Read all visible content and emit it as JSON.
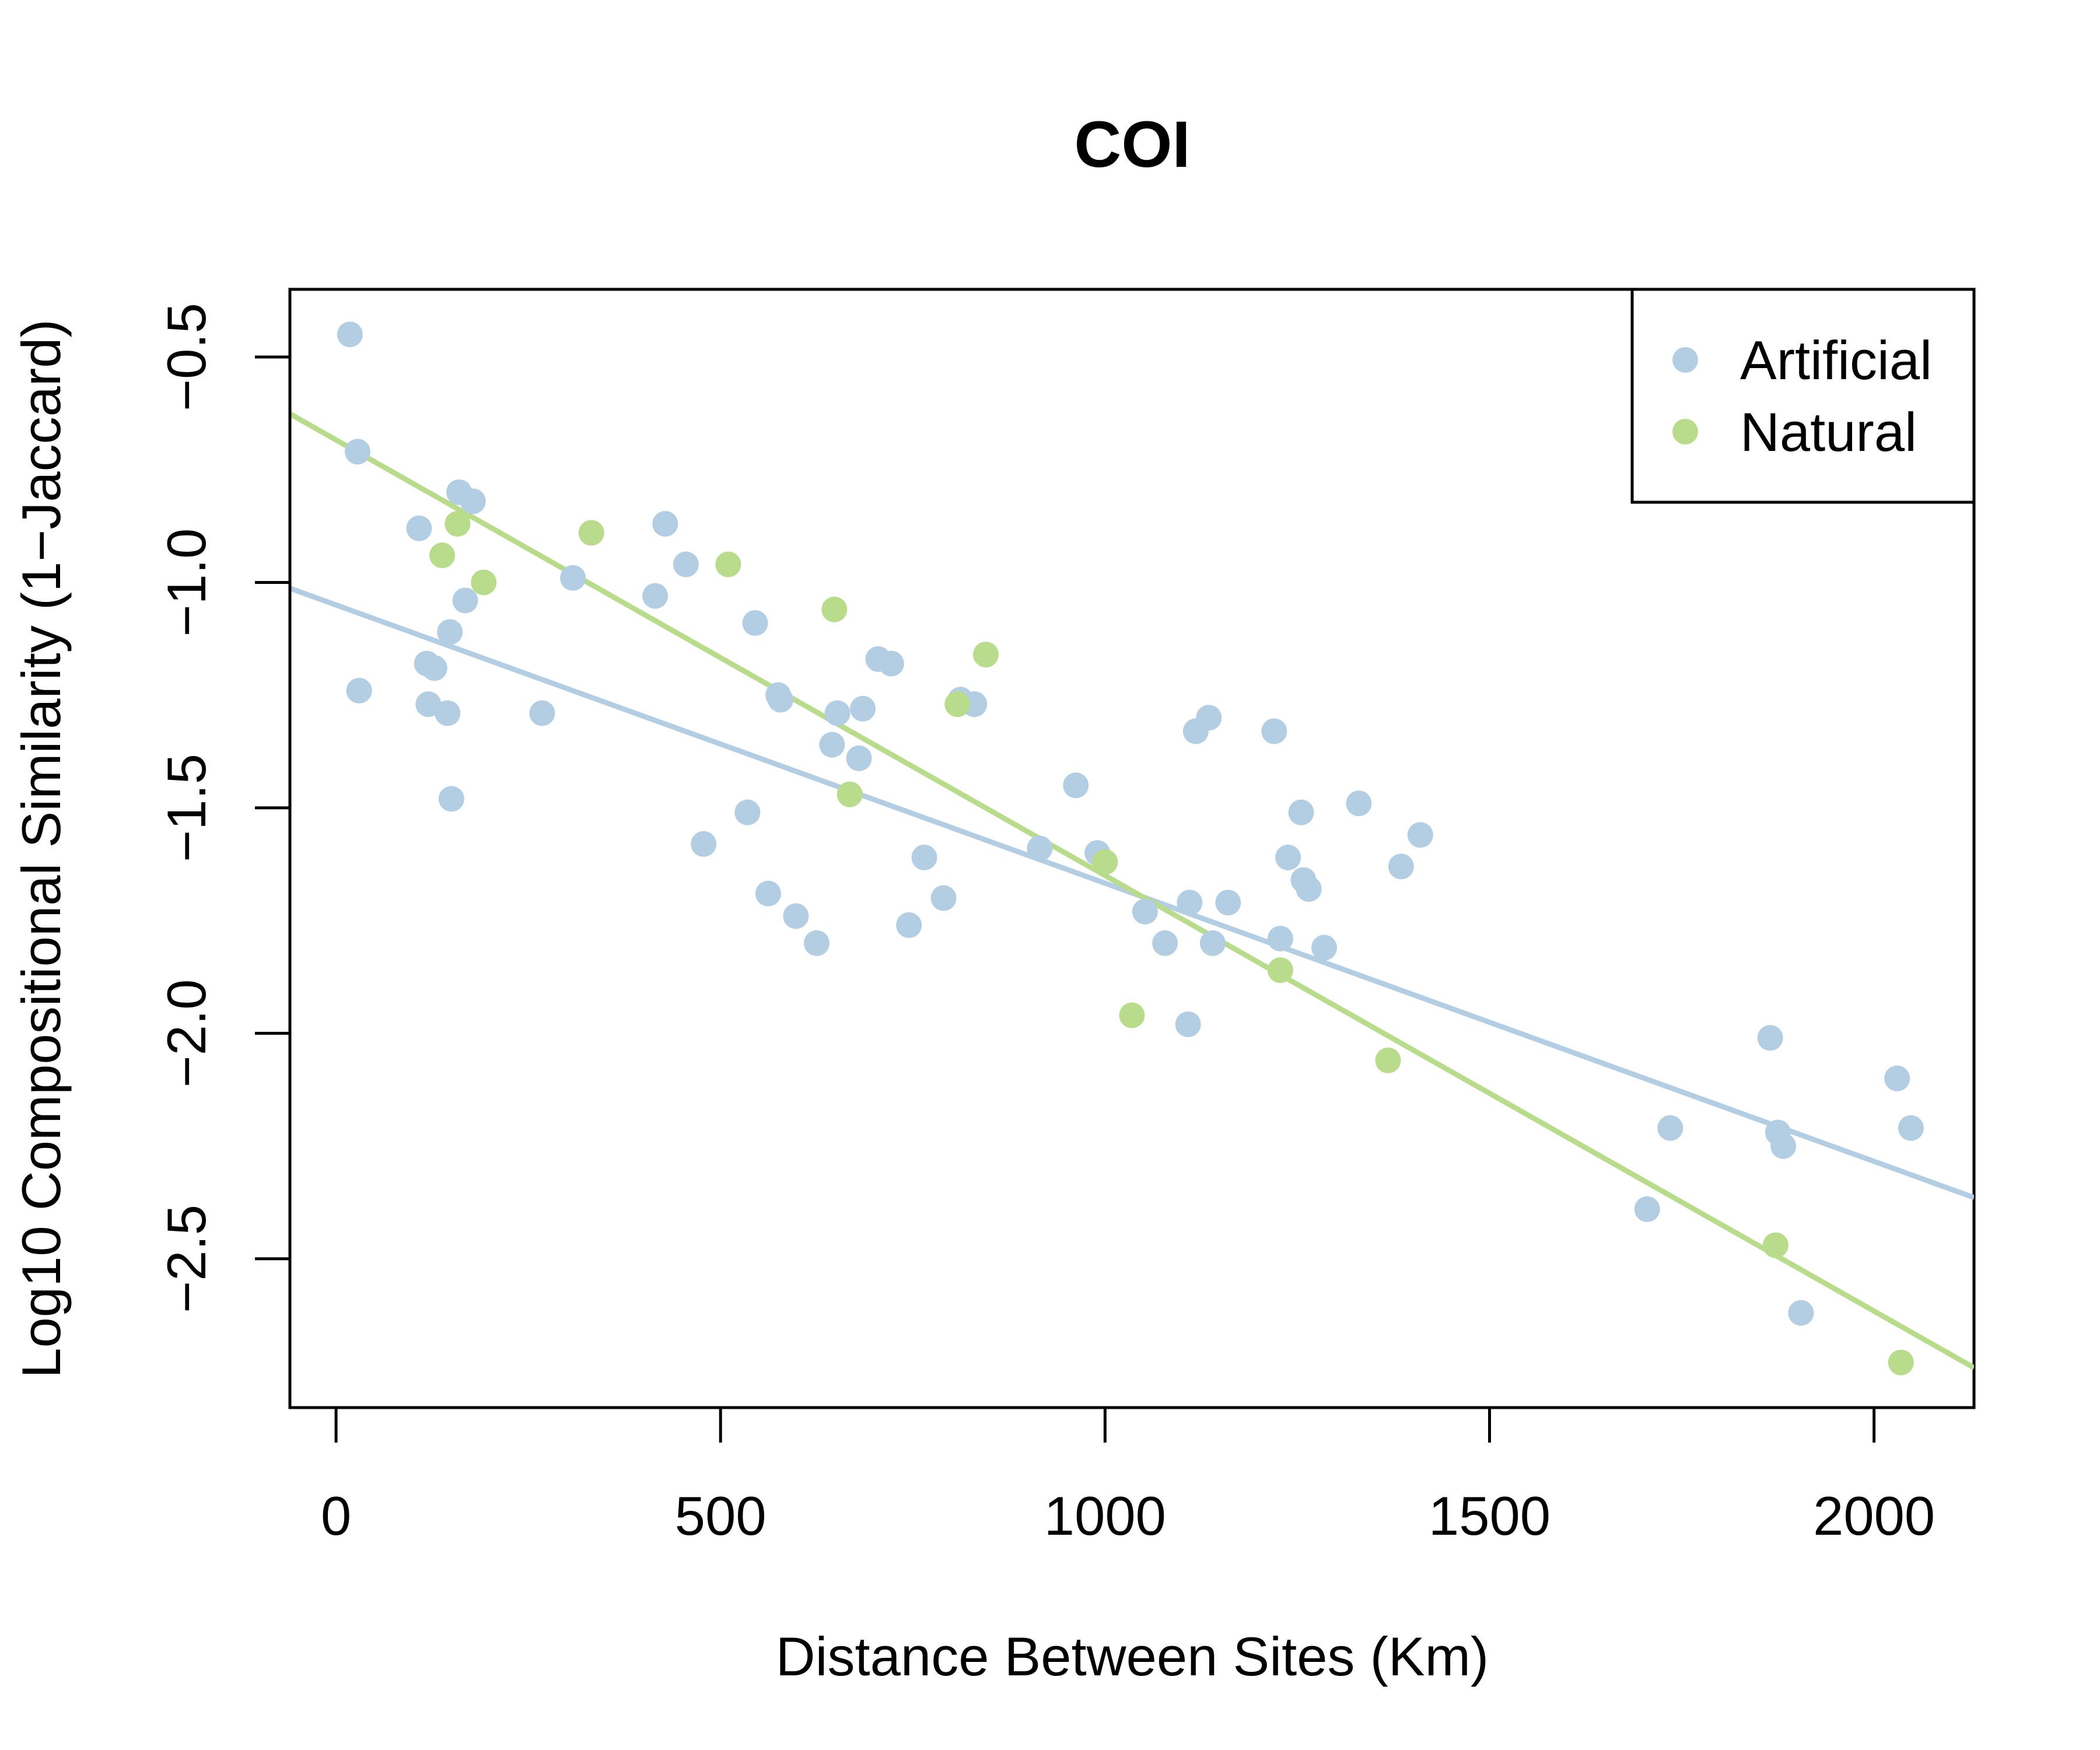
{
  "chart_data": {
    "type": "scatter",
    "title": "COI",
    "xlabel": "Distance Between Sites (Km)",
    "ylabel": "Log10 Compositional Similarity (1−Jaccard)",
    "xlim": [
      -60,
      2130
    ],
    "ylim": [
      -2.83,
      -0.35
    ],
    "xticks": [
      0,
      500,
      1000,
      1500,
      2000
    ],
    "xtick_labels": [
      "0",
      "500",
      "1000",
      "1500",
      "2000"
    ],
    "yticks": [
      -0.5,
      -1.0,
      -1.5,
      -2.0,
      -2.5
    ],
    "ytick_labels": [
      "−0.5",
      "−1.0",
      "−1.5",
      "−2.0",
      "−2.5"
    ],
    "grid": false,
    "legend_position": "top-right",
    "series": [
      {
        "name": "Artificial",
        "color": "#b3cde3",
        "points": [
          [
            18,
            -0.45
          ],
          [
            28,
            -0.71
          ],
          [
            30,
            -1.24
          ],
          [
            108,
            -0.88
          ],
          [
            118,
            -1.18
          ],
          [
            120,
            -1.27
          ],
          [
            128,
            -1.19
          ],
          [
            145,
            -1.29
          ],
          [
            148,
            -1.11
          ],
          [
            150,
            -1.48
          ],
          [
            160,
            -0.8
          ],
          [
            168,
            -1.04
          ],
          [
            178,
            -0.82
          ],
          [
            268,
            -1.29
          ],
          [
            308,
            -0.99
          ],
          [
            415,
            -1.03
          ],
          [
            428,
            -0.87
          ],
          [
            455,
            -0.96
          ],
          [
            478,
            -1.58
          ],
          [
            535,
            -1.51
          ],
          [
            545,
            -1.09
          ],
          [
            562,
            -1.69
          ],
          [
            575,
            -1.25
          ],
          [
            578,
            -1.26
          ],
          [
            598,
            -1.74
          ],
          [
            625,
            -1.8
          ],
          [
            645,
            -1.36
          ],
          [
            652,
            -1.29
          ],
          [
            680,
            -1.39
          ],
          [
            685,
            -1.28
          ],
          [
            705,
            -1.17
          ],
          [
            722,
            -1.18
          ],
          [
            745,
            -1.76
          ],
          [
            765,
            -1.61
          ],
          [
            790,
            -1.7
          ],
          [
            812,
            -1.26
          ],
          [
            830,
            -1.27
          ],
          [
            915,
            -1.59
          ],
          [
            962,
            -1.45
          ],
          [
            990,
            -1.6
          ],
          [
            1052,
            -1.73
          ],
          [
            1078,
            -1.8
          ],
          [
            1108,
            -1.98
          ],
          [
            1110,
            -1.71
          ],
          [
            1118,
            -1.33
          ],
          [
            1135,
            -1.3
          ],
          [
            1140,
            -1.8
          ],
          [
            1160,
            -1.71
          ],
          [
            1220,
            -1.33
          ],
          [
            1228,
            -1.79
          ],
          [
            1238,
            -1.61
          ],
          [
            1255,
            -1.51
          ],
          [
            1258,
            -1.66
          ],
          [
            1265,
            -1.68
          ],
          [
            1285,
            -1.81
          ],
          [
            1330,
            -1.49
          ],
          [
            1385,
            -1.63
          ],
          [
            1410,
            -1.56
          ],
          [
            1705,
            -2.39
          ],
          [
            1735,
            -2.21
          ],
          [
            1865,
            -2.01
          ],
          [
            1875,
            -2.22
          ],
          [
            1882,
            -2.25
          ],
          [
            1905,
            -2.62
          ],
          [
            2030,
            -2.1
          ],
          [
            2048,
            -2.21
          ]
        ],
        "fit": {
          "intercept": -1.05,
          "slope": -0.000617
        }
      },
      {
        "name": "Natural",
        "color": "#b8db8c",
        "points": [
          [
            138,
            -0.94
          ],
          [
            158,
            -0.87
          ],
          [
            192,
            -1.0
          ],
          [
            332,
            -0.89
          ],
          [
            510,
            -0.96
          ],
          [
            648,
            -1.06
          ],
          [
            668,
            -1.47
          ],
          [
            808,
            -1.27
          ],
          [
            845,
            -1.16
          ],
          [
            1000,
            -1.62
          ],
          [
            1035,
            -1.96
          ],
          [
            1228,
            -1.86
          ],
          [
            1368,
            -2.06
          ],
          [
            1872,
            -2.47
          ],
          [
            2035,
            -2.73
          ]
        ],
        "fit": {
          "intercept": -0.684,
          "slope": -0.000966
        }
      }
    ]
  }
}
